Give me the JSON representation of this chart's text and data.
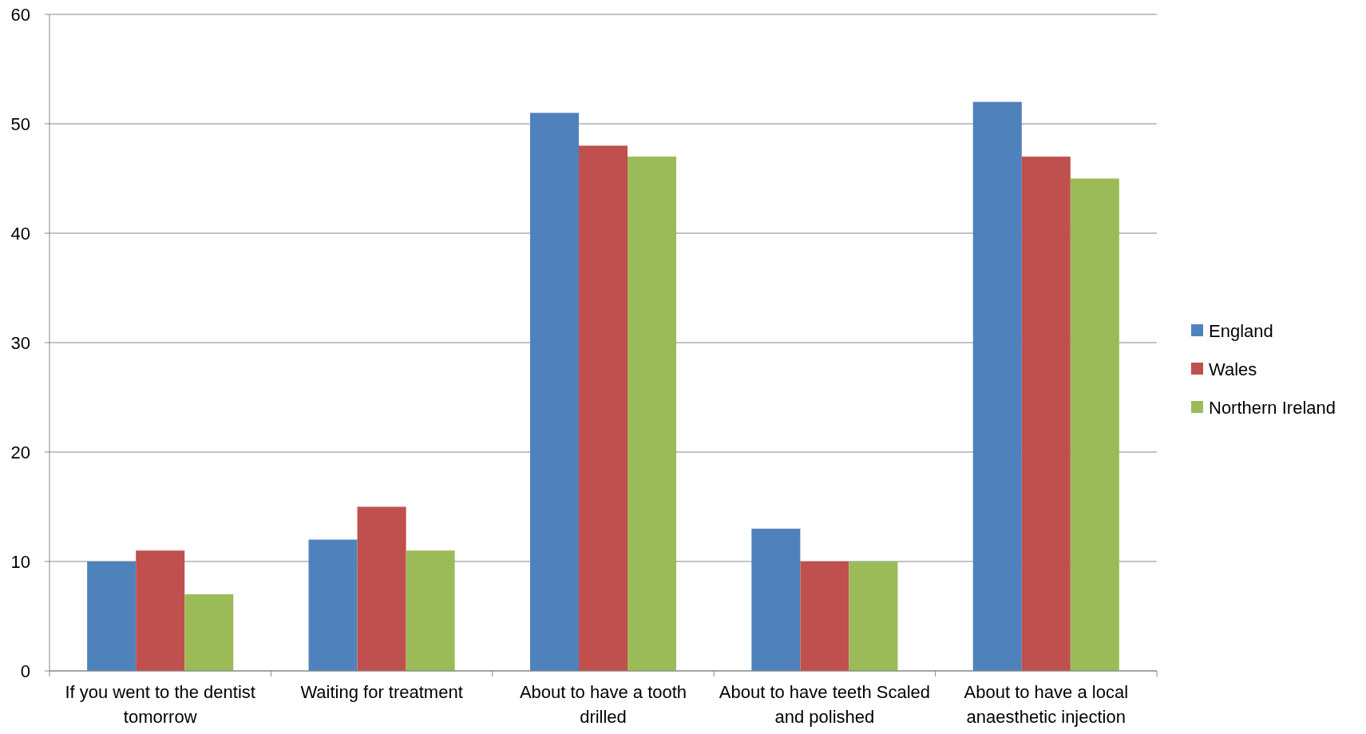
{
  "chart_data": {
    "type": "bar",
    "categories": [
      "If you went to the dentist tomorrow",
      "Waiting for treatment",
      "About to have a tooth drilled",
      "About to have teeth Scaled and polished",
      "About to have a local anaesthetic injection"
    ],
    "series": [
      {
        "name": "England",
        "color": "#4f81bd",
        "values": [
          10,
          12,
          51,
          13,
          52
        ]
      },
      {
        "name": "Wales",
        "color": "#c0504d",
        "values": [
          11,
          15,
          48,
          10,
          47
        ]
      },
      {
        "name": "Northern Ireland",
        "color": "#9bbb59",
        "values": [
          7,
          11,
          47,
          10,
          45
        ]
      }
    ],
    "ylim": [
      0,
      60
    ],
    "yticks": [
      0,
      10,
      20,
      30,
      40,
      50,
      60
    ],
    "grid": "y",
    "legend": "right"
  }
}
